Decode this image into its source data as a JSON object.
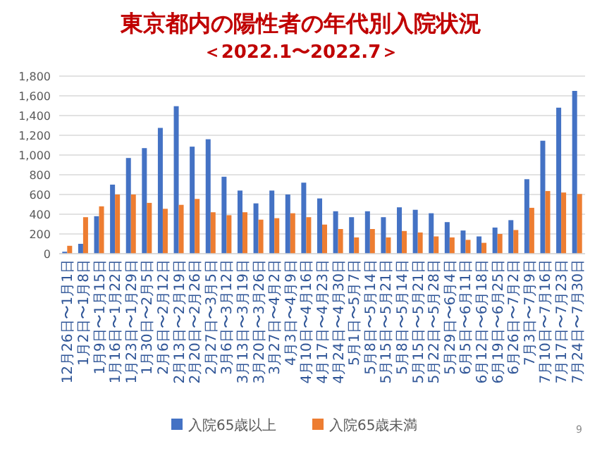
{
  "chart_data": {
    "type": "bar",
    "title": "東京都内の陽性者の年代別入院状況",
    "subtitle": "＜2022.1〜2022.7＞",
    "categories": [
      "12月26日〜1月1日",
      "1月2日〜1月8日",
      "1月9日〜1月15日",
      "1月16日〜1月22日",
      "1月23日〜1月29日",
      "1月30日〜2月5日",
      "2月6日〜2月12日",
      "2月13日〜2月19日",
      "2月20日〜2月26日",
      "2月27日〜3月5日",
      "3月6日〜3月12日",
      "3月13日〜3月19日",
      "3月20日〜3月26日",
      "3月27日〜4月2日",
      "4月3日〜4月9日",
      "4月10日〜4月16日",
      "4月17日〜4月23日",
      "4月24日〜4月30日",
      "5月1日〜5月7日",
      "5月8日〜5月14日",
      "5月15日〜5月21日",
      "5月8日〜5月14日",
      "5月15日〜5月21日",
      "5月22日〜5月28日",
      "5月29日〜6月4日",
      "6月5日〜6月11日",
      "6月12日〜6月18日",
      "6月19日〜6月25日",
      "6月26日〜7月2日",
      "7月3日〜7月9日",
      "7月10日〜7月16日",
      "7月17日〜7月23日",
      "7月24日〜7月30日"
    ],
    "series": [
      {
        "name": "入院65歳以上",
        "color": "#4472c4",
        "values": [
          20,
          100,
          380,
          700,
          970,
          1070,
          1275,
          1495,
          1085,
          1160,
          780,
          640,
          510,
          640,
          600,
          720,
          560,
          430,
          370,
          430,
          370,
          470,
          445,
          410,
          320,
          235,
          175,
          265,
          340,
          755,
          1145,
          1480,
          1650
        ]
      },
      {
        "name": "入院65歳未満",
        "color": "#ed7d31",
        "values": [
          80,
          370,
          480,
          600,
          600,
          515,
          455,
          495,
          555,
          420,
          390,
          420,
          345,
          360,
          410,
          370,
          295,
          250,
          165,
          250,
          165,
          230,
          215,
          175,
          165,
          140,
          110,
          200,
          240,
          465,
          635,
          620,
          605
        ]
      }
    ],
    "ylim": [
      0,
      1800
    ],
    "yticks": [
      0,
      200,
      400,
      600,
      800,
      {
        "value": 1000,
        "label": "1,000"
      },
      {
        "value": 1200,
        "label": "1,200"
      },
      {
        "value": 1400,
        "label": "1,400"
      },
      {
        "value": 1600,
        "label": "1,600"
      },
      {
        "value": 1800,
        "label": "1,800"
      }
    ],
    "grid": "y",
    "legend": "bottom",
    "annotations": [
      "9"
    ]
  }
}
